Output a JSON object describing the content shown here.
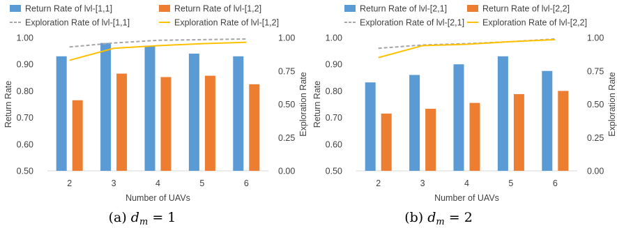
{
  "colors": {
    "return_a": "#5b9bd5",
    "return_b": "#ed7d31",
    "explore_a": "#a5a5a5",
    "explore_b": "#ffc000"
  },
  "chart_data": [
    {
      "type": "bar",
      "caption_prefix": "(a)",
      "caption_var": "d",
      "caption_sub": "m",
      "caption_rest": "= 1",
      "categories": [
        "2",
        "3",
        "4",
        "5",
        "6"
      ],
      "xlabel": "Number of UAVs",
      "ylabel": "Return Rate",
      "y2label": "Exploration Rate",
      "ylim": [
        0.5,
        1.0
      ],
      "y2lim": [
        0.0,
        1.0
      ],
      "yticks": [
        "0.50",
        "0.60",
        "0.70",
        "0.80",
        "0.90",
        "1.00"
      ],
      "y2ticks": [
        "0.00",
        "0.25",
        "0.50",
        "0.75",
        "1.00"
      ],
      "bar_series": [
        {
          "name": "Return Rate of lvl-[1,1]",
          "values": [
            0.93,
            0.98,
            0.97,
            0.94,
            0.93
          ]
        },
        {
          "name": "Return Rate of lvl-[1,2]",
          "values": [
            0.765,
            0.865,
            0.852,
            0.857,
            0.825
          ]
        }
      ],
      "line_series": [
        {
          "name": "Exploration Rate of lvl-[1,1]",
          "style": "dashed",
          "values": [
            0.93,
            0.96,
            0.98,
            0.985,
            0.99
          ]
        },
        {
          "name": "Exploration Rate of lvl-[1,2]",
          "style": "solid",
          "values": [
            0.83,
            0.92,
            0.94,
            0.955,
            0.965
          ]
        }
      ],
      "legend_position": "top"
    },
    {
      "type": "bar",
      "caption_prefix": "(b)",
      "caption_var": "d",
      "caption_sub": "m",
      "caption_rest": "= 2",
      "categories": [
        "2",
        "3",
        "4",
        "5",
        "6"
      ],
      "xlabel": "Number of UAVs",
      "ylabel": "Return Rate",
      "y2label": "Exploration Rate",
      "ylim": [
        0.5,
        1.0
      ],
      "y2lim": [
        0.0,
        1.0
      ],
      "yticks": [
        "0.50",
        "0.60",
        "0.70",
        "0.80",
        "0.90",
        "1.00"
      ],
      "y2ticks": [
        "0.00",
        "0.25",
        "0.50",
        "0.75",
        "1.00"
      ],
      "bar_series": [
        {
          "name": "Return Rate of lvl-[2,1]",
          "values": [
            0.832,
            0.86,
            0.9,
            0.93,
            0.875
          ]
        },
        {
          "name": "Return Rate of lvl-[2,2]",
          "values": [
            0.715,
            0.733,
            0.755,
            0.788,
            0.8
          ]
        }
      ],
      "line_series": [
        {
          "name": "Exploration Rate of lvl-[2,1]",
          "style": "dashed",
          "values": [
            0.92,
            0.945,
            0.955,
            0.97,
            0.99
          ]
        },
        {
          "name": "Exploration Rate of lvl-[2,2]",
          "style": "solid",
          "values": [
            0.85,
            0.94,
            0.95,
            0.97,
            0.985
          ]
        }
      ],
      "legend_position": "top"
    }
  ]
}
